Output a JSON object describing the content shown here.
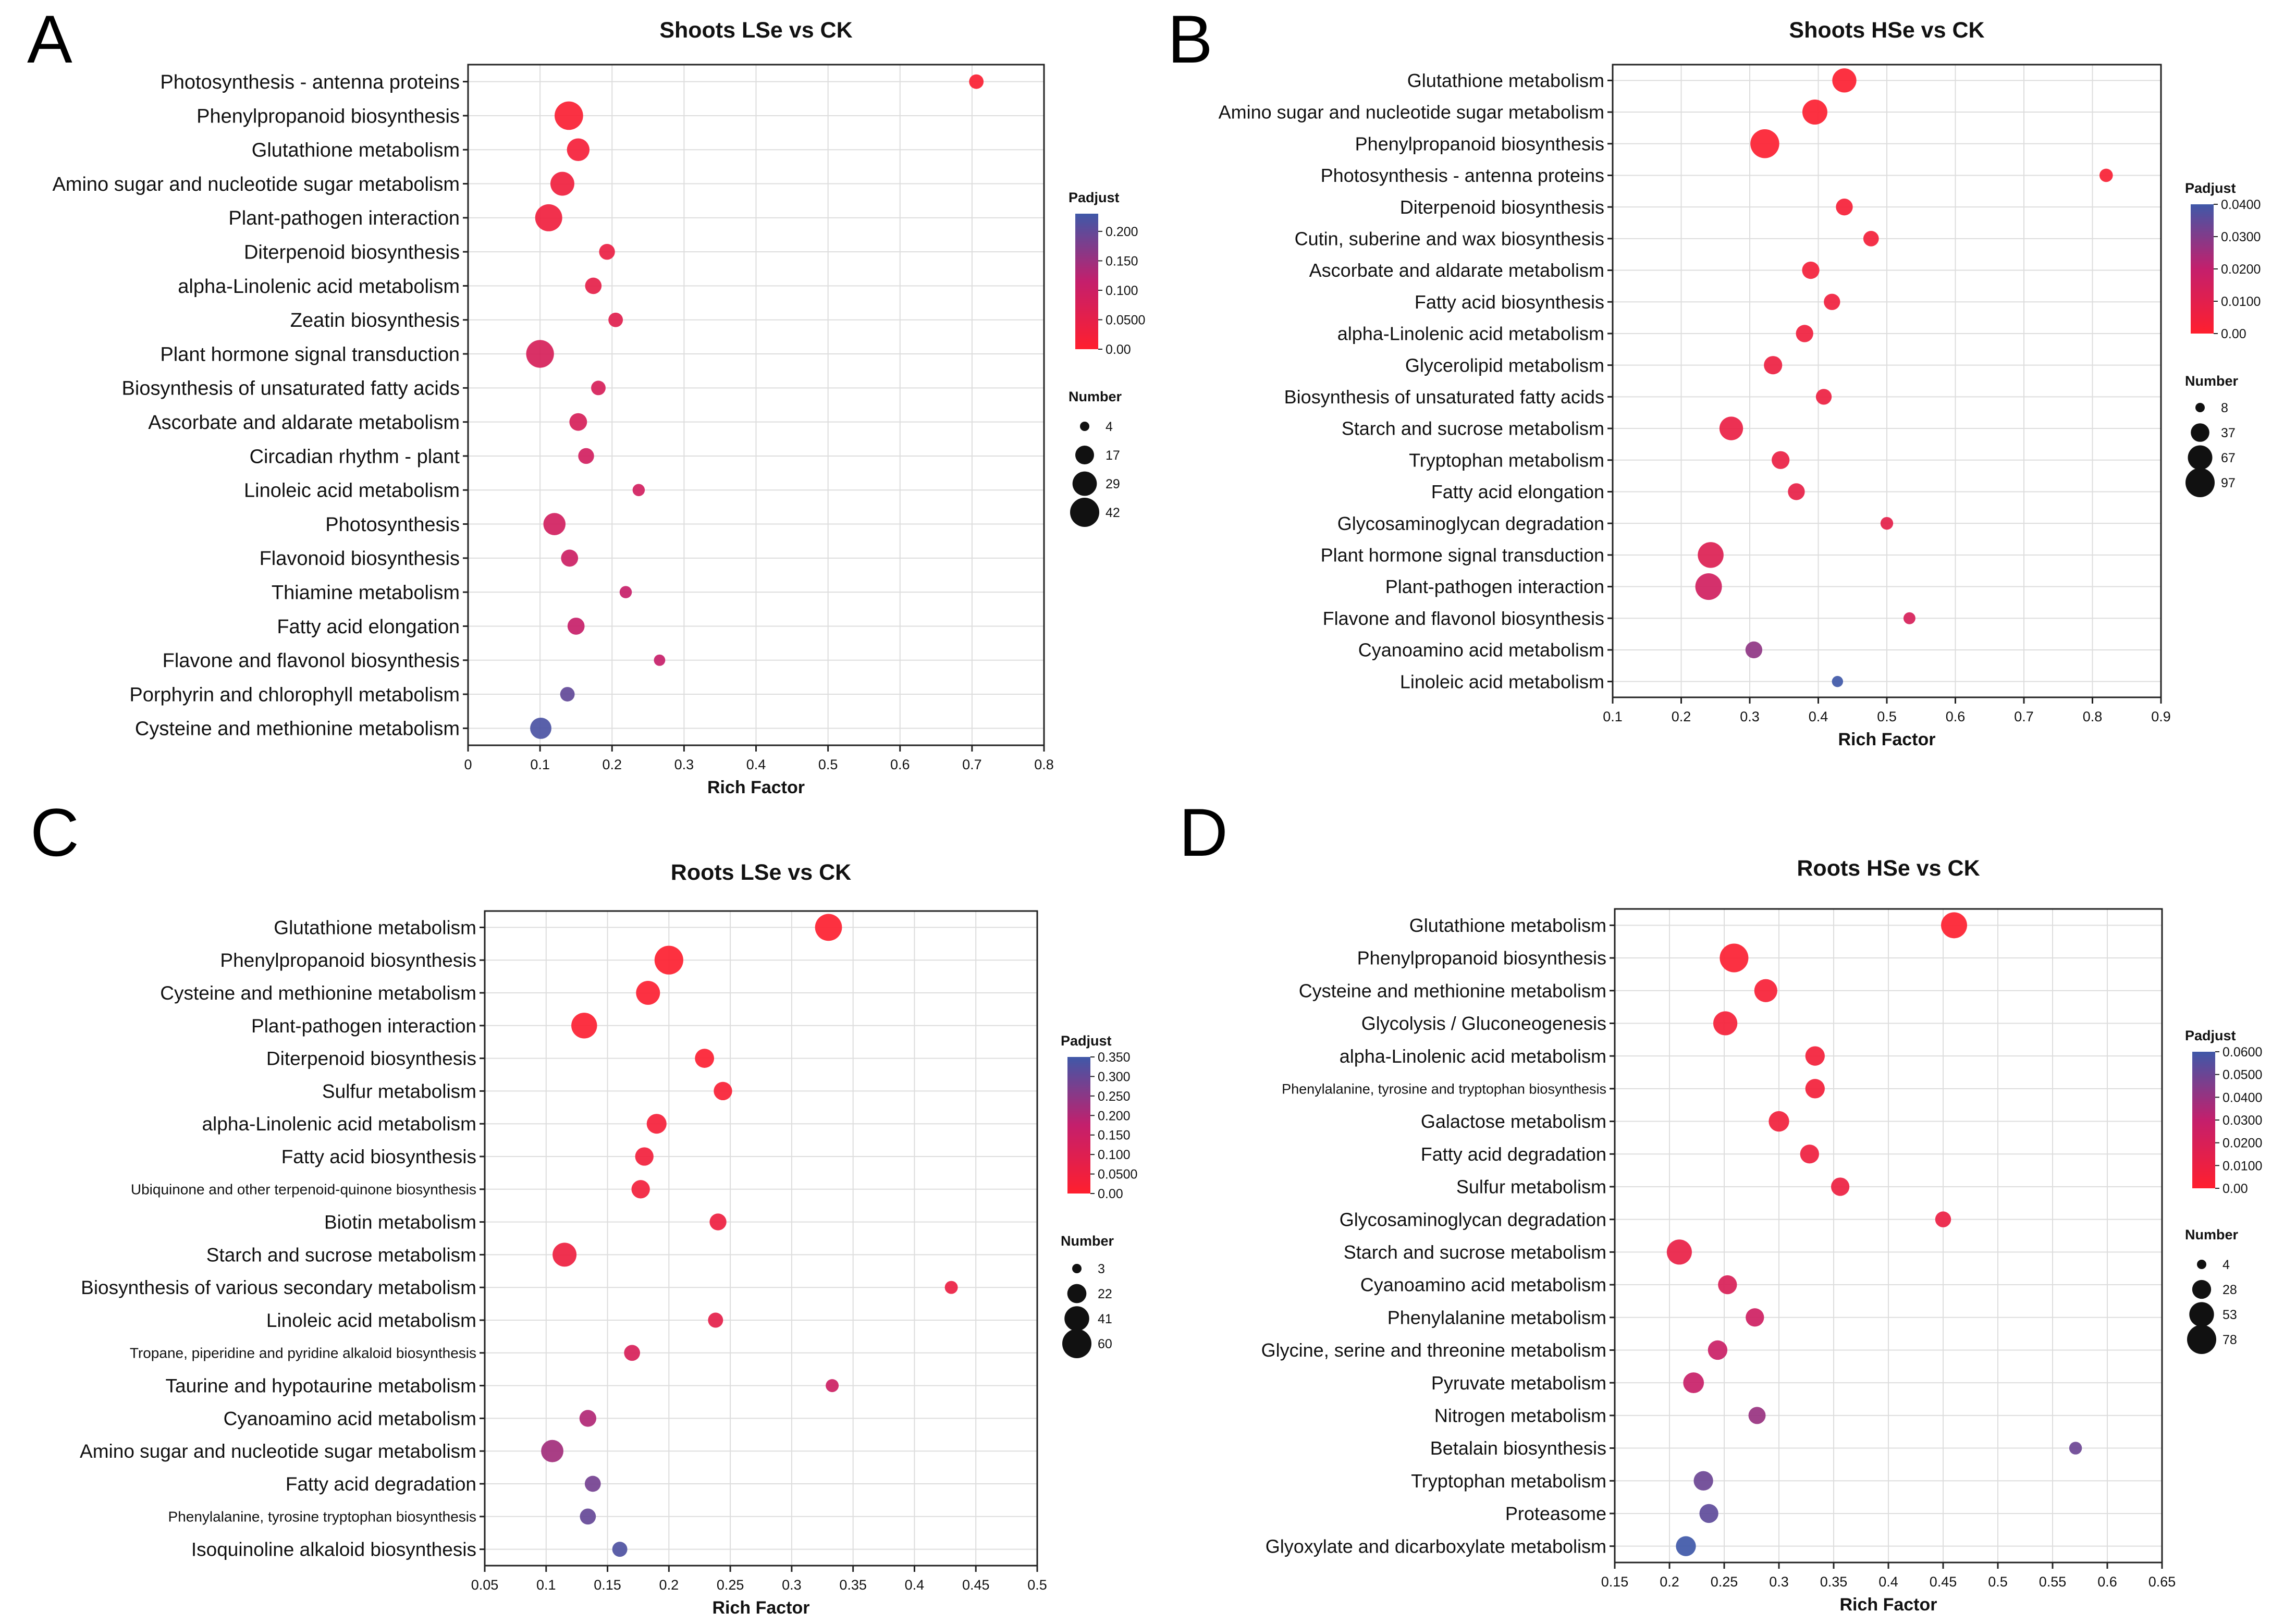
{
  "figure": {
    "panels": [
      {
        "letter": "A"
      },
      {
        "letter": "B"
      },
      {
        "letter": "C"
      },
      {
        "letter": "D"
      }
    ]
  },
  "colors": {
    "low": "#ff1f2e",
    "mid": "#c41f6c",
    "high": "#3f58a8",
    "frame": "#222222",
    "grid": "#dddddd"
  },
  "chart_data": [
    {
      "type": "scatter",
      "title": "Shoots LSe vs CK",
      "xlabel": "Rich Factor",
      "ylabel": "",
      "xlim": [
        0,
        0.8
      ],
      "xticks": [
        "0",
        "0.1",
        "0.2",
        "0.3",
        "0.4",
        "0.5",
        "0.6",
        "0.7",
        "0.8"
      ],
      "legend_color_title": "Padjust",
      "legend_color_range": [
        0,
        0.23
      ],
      "legend_color_ticks": [
        {
          "value": 0.2,
          "label": "0.200"
        },
        {
          "value": 0.15,
          "label": "0.150"
        },
        {
          "value": 0.1,
          "label": "0.100"
        },
        {
          "value": 0.05,
          "label": "0.0500"
        },
        {
          "value": 0,
          "label": "0.00"
        }
      ],
      "legend_size_title": "Number",
      "legend_size_values": [
        {
          "value": 4,
          "label": "4"
        },
        {
          "value": 17,
          "label": "17"
        },
        {
          "value": 29,
          "label": "29"
        },
        {
          "value": 42,
          "label": "42"
        }
      ],
      "size_range": [
        4,
        42
      ],
      "points": [
        {
          "label": "Photosynthesis - antenna proteins",
          "x": 0.706,
          "number": 10,
          "padjust": 0.01
        },
        {
          "label": "Phenylpropanoid biosynthesis",
          "x": 0.14,
          "number": 40,
          "padjust": 0.01
        },
        {
          "label": "Glutathione metabolism",
          "x": 0.153,
          "number": 25,
          "padjust": 0.02
        },
        {
          "label": "Amino sugar and nucleotide sugar metabolism",
          "x": 0.131,
          "number": 28,
          "padjust": 0.03
        },
        {
          "label": "Plant-pathogen interaction",
          "x": 0.112,
          "number": 36,
          "padjust": 0.03
        },
        {
          "label": "Diterpenoid biosynthesis",
          "x": 0.193,
          "number": 12,
          "padjust": 0.04
        },
        {
          "label": "alpha-Linolenic acid metabolism",
          "x": 0.174,
          "number": 13,
          "padjust": 0.05
        },
        {
          "label": "Zeatin biosynthesis",
          "x": 0.205,
          "number": 10,
          "padjust": 0.06
        },
        {
          "label": "Plant hormone signal transduction",
          "x": 0.1,
          "number": 38,
          "padjust": 0.08
        },
        {
          "label": "Biosynthesis of unsaturated fatty acids",
          "x": 0.181,
          "number": 10,
          "padjust": 0.08
        },
        {
          "label": "Ascorbate and aldarate metabolism",
          "x": 0.153,
          "number": 15,
          "padjust": 0.08
        },
        {
          "label": "Circadian rhythm - plant",
          "x": 0.164,
          "number": 12,
          "padjust": 0.09
        },
        {
          "label": "Linoleic acid metabolism",
          "x": 0.237,
          "number": 7,
          "padjust": 0.09
        },
        {
          "label": "Photosynthesis",
          "x": 0.12,
          "number": 24,
          "padjust": 0.09
        },
        {
          "label": "Flavonoid biosynthesis",
          "x": 0.141,
          "number": 14,
          "padjust": 0.1
        },
        {
          "label": "Thiamine metabolism",
          "x": 0.219,
          "number": 7,
          "padjust": 0.11
        },
        {
          "label": "Fatty acid elongation",
          "x": 0.15,
          "number": 14,
          "padjust": 0.11
        },
        {
          "label": "Flavone and flavonol biosynthesis",
          "x": 0.266,
          "number": 6,
          "padjust": 0.11
        },
        {
          "label": "Porphyrin and chlorophyll metabolism",
          "x": 0.138,
          "number": 10,
          "padjust": 0.2
        },
        {
          "label": "Cysteine and methionine metabolism",
          "x": 0.101,
          "number": 22,
          "padjust": 0.22
        }
      ]
    },
    {
      "type": "scatter",
      "title": "Shoots HSe vs CK",
      "xlabel": "Rich Factor",
      "ylabel": "",
      "xlim": [
        0.1,
        0.9
      ],
      "xticks": [
        "0.1",
        "0.2",
        "0.3",
        "0.4",
        "0.5",
        "0.6",
        "0.7",
        "0.8",
        "0.9"
      ],
      "legend_color_title": "Padjust",
      "legend_color_range": [
        0,
        0.04
      ],
      "legend_color_ticks": [
        {
          "value": 0.04,
          "label": "0.0400"
        },
        {
          "value": 0.03,
          "label": "0.0300"
        },
        {
          "value": 0.02,
          "label": "0.0200"
        },
        {
          "value": 0.01,
          "label": "0.0100"
        },
        {
          "value": 0,
          "label": "0.00"
        }
      ],
      "legend_size_title": "Number",
      "legend_size_values": [
        {
          "value": 8,
          "label": "8"
        },
        {
          "value": 37,
          "label": "37"
        },
        {
          "value": 67,
          "label": "67"
        },
        {
          "value": 97,
          "label": "97"
        }
      ],
      "size_range": [
        8,
        97
      ],
      "points": [
        {
          "label": "Glutathione metabolism",
          "x": 0.438,
          "number": 65,
          "padjust": 0.001
        },
        {
          "label": "Amino sugar and nucleotide sugar metabolism",
          "x": 0.395,
          "number": 70,
          "padjust": 0.001
        },
        {
          "label": "Phenylpropanoid biosynthesis",
          "x": 0.322,
          "number": 95,
          "padjust": 0.001
        },
        {
          "label": "Photosynthesis - antenna proteins",
          "x": 0.82,
          "number": 18,
          "padjust": 0.002
        },
        {
          "label": "Diterpenoid biosynthesis",
          "x": 0.438,
          "number": 30,
          "padjust": 0.003
        },
        {
          "label": "Cutin, suberine and wax biosynthesis",
          "x": 0.477,
          "number": 25,
          "padjust": 0.004
        },
        {
          "label": "Ascorbate and aldarate metabolism",
          "x": 0.389,
          "number": 32,
          "padjust": 0.004
        },
        {
          "label": "Fatty acid biosynthesis",
          "x": 0.42,
          "number": 28,
          "padjust": 0.005
        },
        {
          "label": "alpha-Linolenic acid metabolism",
          "x": 0.38,
          "number": 32,
          "padjust": 0.005
        },
        {
          "label": "Glycerolipid metabolism",
          "x": 0.334,
          "number": 36,
          "padjust": 0.006
        },
        {
          "label": "Biosynthesis of unsaturated fatty acids",
          "x": 0.408,
          "number": 26,
          "padjust": 0.006
        },
        {
          "label": "Starch and sucrose metabolism",
          "x": 0.273,
          "number": 62,
          "padjust": 0.007
        },
        {
          "label": "Tryptophan metabolism",
          "x": 0.345,
          "number": 34,
          "padjust": 0.007
        },
        {
          "label": "Fatty acid elongation",
          "x": 0.368,
          "number": 30,
          "padjust": 0.008
        },
        {
          "label": "Glycosaminoglycan degradation",
          "x": 0.5,
          "number": 16,
          "padjust": 0.009
        },
        {
          "label": "Plant hormone signal transduction",
          "x": 0.243,
          "number": 75,
          "padjust": 0.012
        },
        {
          "label": "Plant-pathogen interaction",
          "x": 0.24,
          "number": 80,
          "padjust": 0.016
        },
        {
          "label": "Flavone and flavonol biosynthesis",
          "x": 0.533,
          "number": 14,
          "padjust": 0.014
        },
        {
          "label": "Cyanoamino acid metabolism",
          "x": 0.306,
          "number": 30,
          "padjust": 0.028
        },
        {
          "label": "Linoleic acid metabolism",
          "x": 0.428,
          "number": 12,
          "padjust": 0.04
        }
      ]
    },
    {
      "type": "scatter",
      "title": "Roots LSe vs CK",
      "xlabel": "Rich Factor",
      "ylabel": "",
      "xlim": [
        0.05,
        0.5
      ],
      "xticks": [
        "0.05",
        "0.1",
        "0.15",
        "0.2",
        "0.25",
        "0.3",
        "0.35",
        "0.4",
        "0.45",
        "0.5"
      ],
      "legend_color_title": "Padjust",
      "legend_color_range": [
        0,
        0.35
      ],
      "legend_color_ticks": [
        {
          "value": 0.35,
          "label": "0.350"
        },
        {
          "value": 0.3,
          "label": "0.300"
        },
        {
          "value": 0.25,
          "label": "0.250"
        },
        {
          "value": 0.2,
          "label": "0.200"
        },
        {
          "value": 0.15,
          "label": "0.150"
        },
        {
          "value": 0.1,
          "label": "0.100"
        },
        {
          "value": 0.05,
          "label": "0.0500"
        },
        {
          "value": 0,
          "label": "0.00"
        }
      ],
      "legend_size_title": "Number",
      "legend_size_values": [
        {
          "value": 3,
          "label": "3"
        },
        {
          "value": 22,
          "label": "22"
        },
        {
          "value": 41,
          "label": "41"
        },
        {
          "value": 60,
          "label": "60"
        }
      ],
      "size_range": [
        3,
        60
      ],
      "points": [
        {
          "label": "Glutathione metabolism",
          "x": 0.33,
          "number": 50,
          "padjust": 0.005
        },
        {
          "label": "Phenylpropanoid biosynthesis",
          "x": 0.2,
          "number": 58,
          "padjust": 0.005
        },
        {
          "label": "Cysteine and methionine metabolism",
          "x": 0.183,
          "number": 38,
          "padjust": 0.01
        },
        {
          "label": "Plant-pathogen interaction",
          "x": 0.131,
          "number": 45,
          "padjust": 0.01
        },
        {
          "label": "Diterpenoid biosynthesis",
          "x": 0.229,
          "number": 22,
          "padjust": 0.01
        },
        {
          "label": "Sulfur metabolism",
          "x": 0.244,
          "number": 20,
          "padjust": 0.02
        },
        {
          "label": "alpha-Linolenic acid metabolism",
          "x": 0.19,
          "number": 24,
          "padjust": 0.03
        },
        {
          "label": "Fatty acid biosynthesis",
          "x": 0.18,
          "number": 20,
          "padjust": 0.04
        },
        {
          "label": "Ubiquinone and other terpenoid-quinone biosynthesis",
          "x": 0.177,
          "number": 20,
          "padjust": 0.04
        },
        {
          "label": "Biotin metabolism",
          "x": 0.24,
          "number": 16,
          "padjust": 0.05
        },
        {
          "label": "Starch and sucrose metabolism",
          "x": 0.115,
          "number": 38,
          "padjust": 0.05
        },
        {
          "label": "Biosynthesis of various secondary metabolism",
          "x": 0.43,
          "number": 8,
          "padjust": 0.06
        },
        {
          "label": "Linoleic acid metabolism",
          "x": 0.238,
          "number": 12,
          "padjust": 0.08
        },
        {
          "label": "Tropane, piperidine and pyridine alkaloid biosynthesis",
          "x": 0.17,
          "number": 14,
          "padjust": 0.12
        },
        {
          "label": "Taurine and hypotaurine metabolism",
          "x": 0.333,
          "number": 8,
          "padjust": 0.15
        },
        {
          "label": "Cyanoamino acid metabolism",
          "x": 0.134,
          "number": 16,
          "padjust": 0.2
        },
        {
          "label": "Amino sugar and nucleotide sugar metabolism",
          "x": 0.105,
          "number": 32,
          "padjust": 0.22
        },
        {
          "label": "Fatty acid degradation",
          "x": 0.138,
          "number": 14,
          "padjust": 0.28
        },
        {
          "label": "Phenylalanine, tyrosine tryptophan biosynthesis",
          "x": 0.134,
          "number": 14,
          "padjust": 0.3
        },
        {
          "label": "Isoquinoline alkaloid biosynthesis",
          "x": 0.16,
          "number": 12,
          "padjust": 0.33
        }
      ]
    },
    {
      "type": "scatter",
      "title": "Roots HSe vs CK",
      "xlabel": "Rich Factor",
      "ylabel": "",
      "xlim": [
        0.15,
        0.65
      ],
      "xticks": [
        "0.15",
        "0.2",
        "0.25",
        "0.3",
        "0.35",
        "0.4",
        "0.45",
        "0.5",
        "0.55",
        "0.6",
        "0.65"
      ],
      "legend_color_title": "Padjust",
      "legend_color_range": [
        0,
        0.06
      ],
      "legend_color_ticks": [
        {
          "value": 0.06,
          "label": "0.0600"
        },
        {
          "value": 0.05,
          "label": "0.0500"
        },
        {
          "value": 0.04,
          "label": "0.0400"
        },
        {
          "value": 0.03,
          "label": "0.0300"
        },
        {
          "value": 0.02,
          "label": "0.0200"
        },
        {
          "value": 0.01,
          "label": "0.0100"
        },
        {
          "value": 0,
          "label": "0.00"
        }
      ],
      "legend_size_title": "Number",
      "legend_size_values": [
        {
          "value": 4,
          "label": "4"
        },
        {
          "value": 28,
          "label": "28"
        },
        {
          "value": 53,
          "label": "53"
        },
        {
          "value": 78,
          "label": "78"
        }
      ],
      "size_range": [
        4,
        78
      ],
      "points": [
        {
          "label": "Glutathione metabolism",
          "x": 0.46,
          "number": 60,
          "padjust": 0.001
        },
        {
          "label": "Phenylpropanoid biosynthesis",
          "x": 0.259,
          "number": 75,
          "padjust": 0.002
        },
        {
          "label": "Cysteine and methionine metabolism",
          "x": 0.288,
          "number": 45,
          "padjust": 0.004
        },
        {
          "label": "Glycolysis / Gluconeogenesis",
          "x": 0.251,
          "number": 50,
          "padjust": 0.005
        },
        {
          "label": "alpha-Linolenic acid metabolism",
          "x": 0.333,
          "number": 30,
          "padjust": 0.006
        },
        {
          "label": "Phenylalanine, tyrosine and tryptophan biosynthesis",
          "x": 0.333,
          "number": 30,
          "padjust": 0.006
        },
        {
          "label": "Galactose metabolism",
          "x": 0.3,
          "number": 34,
          "padjust": 0.007
        },
        {
          "label": "Fatty acid degradation",
          "x": 0.328,
          "number": 28,
          "padjust": 0.008
        },
        {
          "label": "Sulfur metabolism",
          "x": 0.356,
          "number": 26,
          "padjust": 0.009
        },
        {
          "label": "Glycosaminoglycan degradation",
          "x": 0.45,
          "number": 18,
          "padjust": 0.01
        },
        {
          "label": "Starch and sucrose metabolism",
          "x": 0.209,
          "number": 55,
          "padjust": 0.011
        },
        {
          "label": "Cyanoamino acid metabolism",
          "x": 0.253,
          "number": 28,
          "padjust": 0.02
        },
        {
          "label": "Phenylalanine metabolism",
          "x": 0.278,
          "number": 26,
          "padjust": 0.025
        },
        {
          "label": "Glycine, serine and threonine metabolism",
          "x": 0.244,
          "number": 30,
          "padjust": 0.027
        },
        {
          "label": "Pyruvate metabolism",
          "x": 0.222,
          "number": 35,
          "padjust": 0.028
        },
        {
          "label": "Nitrogen metabolism",
          "x": 0.28,
          "number": 22,
          "padjust": 0.04
        },
        {
          "label": "Betalain biosynthesis",
          "x": 0.571,
          "number": 10,
          "padjust": 0.05
        },
        {
          "label": "Tryptophan metabolism",
          "x": 0.231,
          "number": 30,
          "padjust": 0.05
        },
        {
          "label": "Proteasome",
          "x": 0.236,
          "number": 28,
          "padjust": 0.053
        },
        {
          "label": "Glyoxylate and dicarboxylate metabolism",
          "x": 0.215,
          "number": 32,
          "padjust": 0.06
        }
      ]
    }
  ]
}
